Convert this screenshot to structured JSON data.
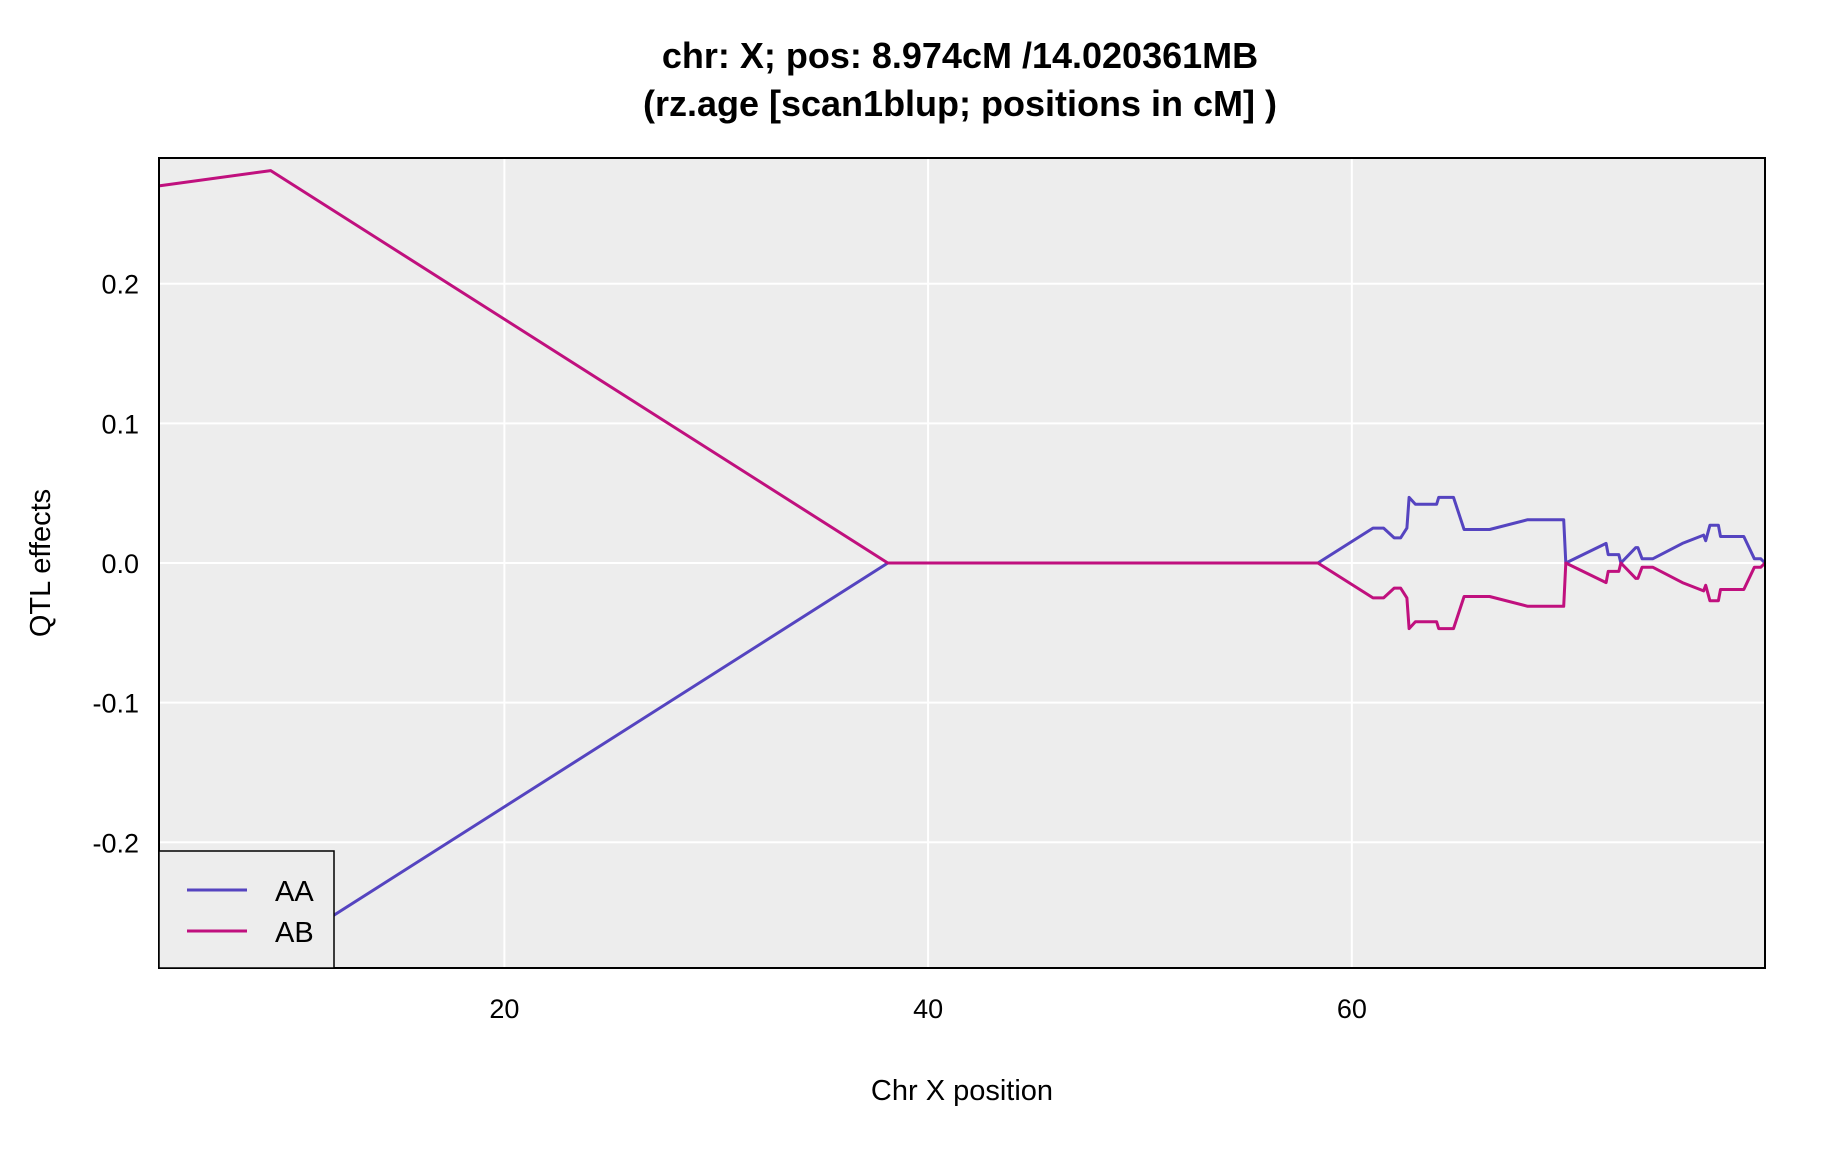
{
  "chart_data": {
    "type": "line",
    "title_lines": [
      "chr: X; pos: 8.974cM /14.020361MB",
      "(rz.age [scan1blup; positions in cM] )"
    ],
    "xlabel": "Chr X position",
    "ylabel": "QTL effects",
    "xlim": [
      3.7,
      79.5
    ],
    "ylim": [
      -0.29,
      0.29
    ],
    "x_ticks": [
      20,
      40,
      60
    ],
    "x_tick_labels": [
      "20",
      "40",
      "60"
    ],
    "y_ticks": [
      -0.2,
      -0.1,
      0.0,
      0.1,
      0.2
    ],
    "y_tick_labels": [
      "-0.2",
      "-0.1",
      "0.0",
      "0.1",
      "0.2"
    ],
    "grid": true,
    "background": "#ededed",
    "legend_position": "bottom-left",
    "series": [
      {
        "name": "AA",
        "color": "#5544c0",
        "x": [
          3.7,
          8.97,
          38.1,
          58.4,
          61.0,
          61.5,
          62.0,
          62.3,
          62.6,
          62.7,
          63.0,
          64.0,
          64.1,
          64.8,
          65.3,
          66.5,
          68.3,
          70.0,
          70.1,
          72.0,
          72.1,
          72.6,
          72.7,
          73.4,
          73.5,
          73.7,
          73.8,
          74.2,
          75.6,
          76.6,
          76.7,
          76.9,
          77.3,
          77.4,
          78.3,
          78.5,
          79.0,
          79.3,
          79.5
        ],
        "y": [
          -0.27,
          -0.281,
          0.0,
          0.0,
          0.025,
          0.025,
          0.018,
          0.018,
          0.025,
          0.047,
          0.042,
          0.042,
          0.047,
          0.047,
          0.024,
          0.024,
          0.031,
          0.031,
          0.0,
          0.014,
          0.006,
          0.006,
          0.0,
          0.011,
          0.011,
          0.003,
          0.003,
          0.003,
          0.014,
          0.02,
          0.016,
          0.027,
          0.027,
          0.019,
          0.019,
          0.019,
          0.003,
          0.003,
          0.0
        ]
      },
      {
        "name": "AB",
        "color": "#c0107e",
        "x": [
          3.7,
          8.97,
          38.1,
          58.4,
          61.0,
          61.5,
          62.0,
          62.3,
          62.6,
          62.7,
          63.0,
          64.0,
          64.1,
          64.8,
          65.3,
          66.5,
          68.3,
          70.0,
          70.1,
          72.0,
          72.1,
          72.6,
          72.7,
          73.4,
          73.5,
          73.7,
          73.8,
          74.2,
          75.6,
          76.6,
          76.7,
          76.9,
          77.3,
          77.4,
          78.3,
          78.5,
          79.0,
          79.3,
          79.5
        ],
        "y": [
          0.27,
          0.281,
          0.0,
          0.0,
          -0.025,
          -0.025,
          -0.018,
          -0.018,
          -0.025,
          -0.047,
          -0.042,
          -0.042,
          -0.047,
          -0.047,
          -0.024,
          -0.024,
          -0.031,
          -0.031,
          0.0,
          -0.014,
          -0.006,
          -0.006,
          0.0,
          -0.011,
          -0.011,
          -0.003,
          -0.003,
          -0.003,
          -0.014,
          -0.02,
          -0.016,
          -0.027,
          -0.027,
          -0.019,
          -0.019,
          -0.019,
          -0.003,
          -0.003,
          0.0
        ]
      }
    ]
  }
}
